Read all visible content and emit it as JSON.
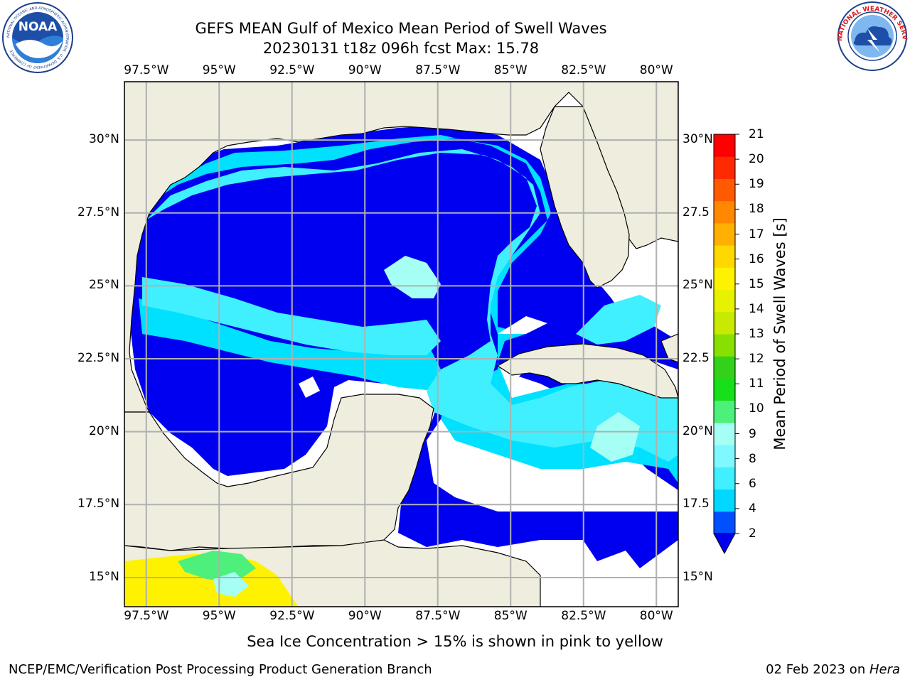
{
  "title": {
    "line1": "GEFS MEAN Gulf of Mexico Mean Period of Swell Waves",
    "line2": "20230131 t18z 096h fcst   Max: 15.78"
  },
  "logos": {
    "left": {
      "icon": "noaa-logo",
      "text": "NOAA",
      "ring_text": "NATIONAL OCEANIC AND ATMOSPHERIC ADMINISTRATION · U.S. DEPARTMENT OF COMMERCE"
    },
    "right": {
      "icon": "nws-logo",
      "ring_text": "NATIONAL WEATHER SERVICE"
    }
  },
  "map": {
    "lon_labels": [
      "97.5°W",
      "95°W",
      "92.5°W",
      "90°W",
      "87.5°W",
      "85°W",
      "82.5°W",
      "80°W"
    ],
    "lat_labels_left": [
      "30°N",
      "27.5°N",
      "25°N",
      "22.5°N",
      "20°N",
      "17.5°N",
      "15°N"
    ],
    "lat_labels_right": [
      "30°N",
      "27.5",
      "25°N",
      "22.5",
      "20°N",
      "17.5",
      "15°N"
    ],
    "lon_range": [
      -98.25,
      -79.25
    ],
    "lat_range": [
      14.0,
      32.0
    ],
    "colors": {
      "land": "#eeedde",
      "no_data": "#ffffff",
      "grid": "#b0b0b0"
    }
  },
  "colorbar": {
    "title": "Mean Period of Swell Waves [s]",
    "ticks": [
      "2",
      "4",
      "6",
      "8",
      "9",
      "10",
      "11",
      "12",
      "13",
      "14",
      "15",
      "16",
      "17",
      "18",
      "19",
      "20",
      "21"
    ],
    "colors": [
      "#0050ff",
      "#00d8ff",
      "#40f0ff",
      "#7ff8ff",
      "#a6fff4",
      "#4cf07a",
      "#18e018",
      "#33d21a",
      "#88e000",
      "#c7ea00",
      "#e6f200",
      "#fff200",
      "#ffd800",
      "#ffb000",
      "#ff8800",
      "#ff5a00",
      "#ff2a00",
      "#ff0000"
    ],
    "extend_below_color": "#0000f0"
  },
  "caption": "Sea Ice Concentration > 15% is shown in pink to yellow",
  "footer": {
    "left": "NCEP/EMC/Verification Post Processing Product Generation Branch",
    "right_date": "02 Feb 2023 on ",
    "right_host": "Hera"
  }
}
